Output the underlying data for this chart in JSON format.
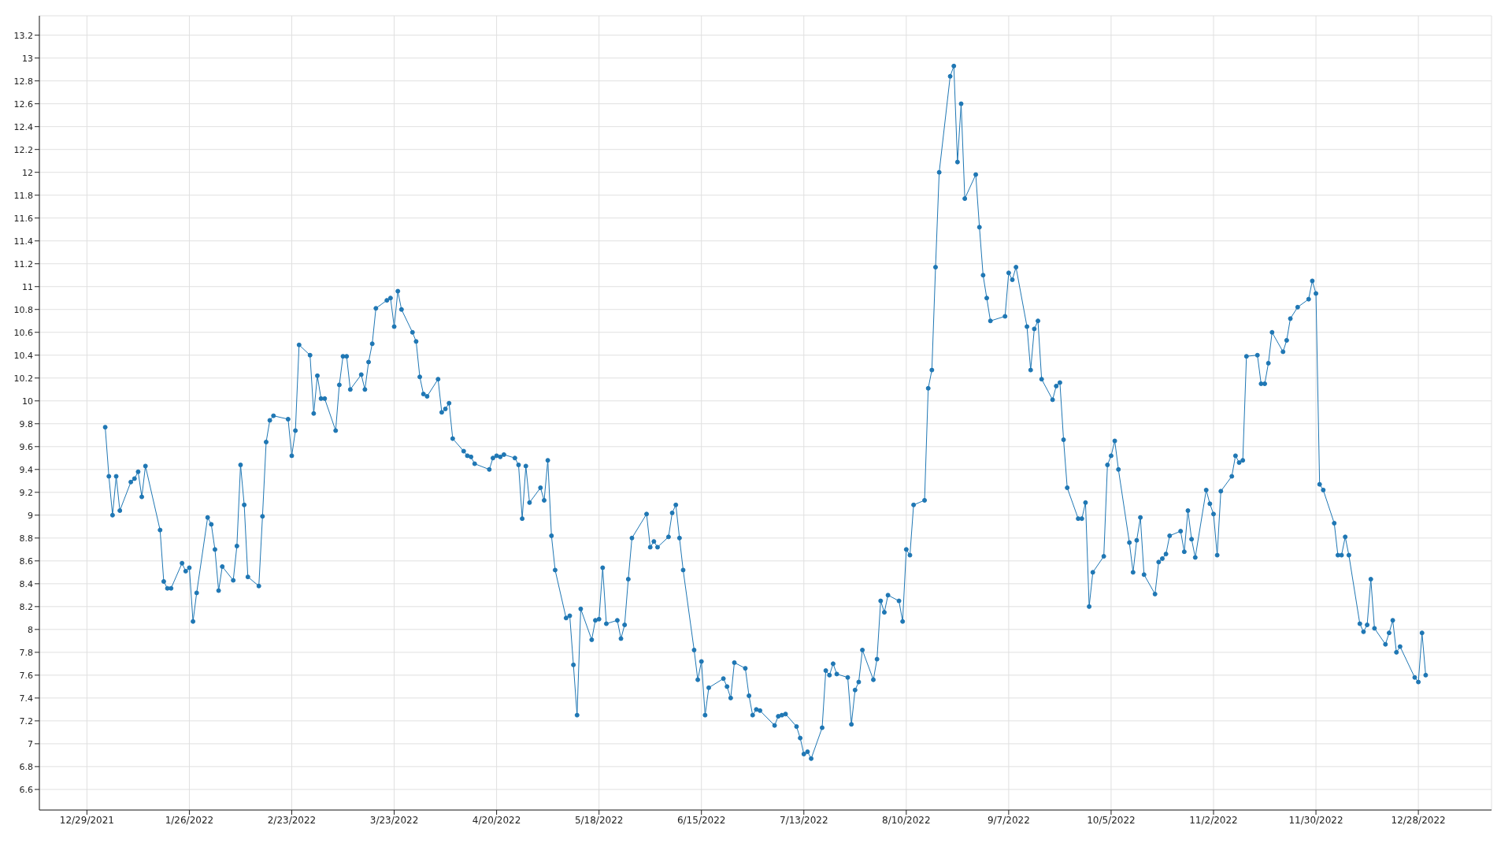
{
  "chart_data": {
    "type": "line",
    "marker": "circle",
    "line_style": "solid",
    "grid": true,
    "legend": false,
    "xlim": [
      "2021-12-16",
      "2023-01-17"
    ],
    "xticks": [
      {
        "value": "2021-12-29",
        "label": "12/29/2021"
      },
      {
        "value": "2022-01-26",
        "label": "1/26/2022"
      },
      {
        "value": "2022-02-23",
        "label": "2/23/2022"
      },
      {
        "value": "2022-03-23",
        "label": "3/23/2022"
      },
      {
        "value": "2022-04-20",
        "label": "4/20/2022"
      },
      {
        "value": "2022-05-18",
        "label": "5/18/2022"
      },
      {
        "value": "2022-06-15",
        "label": "6/15/2022"
      },
      {
        "value": "2022-07-13",
        "label": "7/13/2022"
      },
      {
        "value": "2022-08-10",
        "label": "8/10/2022"
      },
      {
        "value": "2022-09-07",
        "label": "9/7/2022"
      },
      {
        "value": "2022-10-05",
        "label": "10/5/2022"
      },
      {
        "value": "2022-11-02",
        "label": "11/2/2022"
      },
      {
        "value": "2022-11-30",
        "label": "11/30/2022"
      },
      {
        "value": "2022-12-28",
        "label": "12/28/2022"
      }
    ],
    "ylim": [
      6.42,
      13.37
    ],
    "yticks": [
      {
        "value": 6.6,
        "label": "6.6"
      },
      {
        "value": 6.8,
        "label": "6.8"
      },
      7,
      {
        "value": 7.2,
        "label": "7.2"
      },
      {
        "value": 7.4,
        "label": "7.4"
      },
      {
        "value": 7.6,
        "label": "7.6"
      },
      {
        "value": 7.8,
        "label": "7.8"
      },
      8,
      {
        "value": 8.2,
        "label": "8.2"
      },
      {
        "value": 8.4,
        "label": "8.4"
      },
      {
        "value": 8.6,
        "label": "8.6"
      },
      {
        "value": 8.8,
        "label": "8.8"
      },
      9,
      {
        "value": 9.2,
        "label": "9.2"
      },
      {
        "value": 9.4,
        "label": "9.4"
      },
      {
        "value": 9.6,
        "label": "9.6"
      },
      {
        "value": 9.8,
        "label": "9.8"
      },
      10,
      {
        "value": 10.2,
        "label": "10.2"
      },
      {
        "value": 10.4,
        "label": "10.4"
      },
      {
        "value": 10.6,
        "label": "10.6"
      },
      {
        "value": 10.8,
        "label": "10.8"
      },
      11,
      {
        "value": 11.2,
        "label": "11.2"
      },
      {
        "value": 11.4,
        "label": "11.4"
      },
      {
        "value": 11.6,
        "label": "11.6"
      },
      {
        "value": 11.8,
        "label": "11.8"
      },
      12,
      {
        "value": 12.2,
        "label": "12.2"
      },
      {
        "value": 12.4,
        "label": "12.4"
      },
      {
        "value": 12.6,
        "label": "12.6"
      },
      {
        "value": 12.8,
        "label": "12.8"
      },
      13,
      {
        "value": 13.2,
        "label": "13.2"
      }
    ],
    "x": [
      "2022-01-03",
      "2022-01-04",
      "2022-01-05",
      "2022-01-06",
      "2022-01-07",
      "2022-01-10",
      "2022-01-11",
      "2022-01-12",
      "2022-01-13",
      "2022-01-14",
      "2022-01-18",
      "2022-01-19",
      "2022-01-20",
      "2022-01-21",
      "2022-01-24",
      "2022-01-25",
      "2022-01-26",
      "2022-01-27",
      "2022-01-28",
      "2022-01-31",
      "2022-02-01",
      "2022-02-02",
      "2022-02-03",
      "2022-02-04",
      "2022-02-07",
      "2022-02-08",
      "2022-02-09",
      "2022-02-10",
      "2022-02-11",
      "2022-02-14",
      "2022-02-15",
      "2022-02-16",
      "2022-02-17",
      "2022-02-18",
      "2022-02-22",
      "2022-02-23",
      "2022-02-24",
      "2022-02-25",
      "2022-02-28",
      "2022-03-01",
      "2022-03-02",
      "2022-03-03",
      "2022-03-04",
      "2022-03-07",
      "2022-03-08",
      "2022-03-09",
      "2022-03-10",
      "2022-03-11",
      "2022-03-14",
      "2022-03-15",
      "2022-03-16",
      "2022-03-17",
      "2022-03-18",
      "2022-03-21",
      "2022-03-22",
      "2022-03-23",
      "2022-03-24",
      "2022-03-25",
      "2022-03-28",
      "2022-03-29",
      "2022-03-30",
      "2022-03-31",
      "2022-04-01",
      "2022-04-04",
      "2022-04-05",
      "2022-04-06",
      "2022-04-07",
      "2022-04-08",
      "2022-04-11",
      "2022-04-12",
      "2022-04-13",
      "2022-04-14",
      "2022-04-18",
      "2022-04-19",
      "2022-04-20",
      "2022-04-21",
      "2022-04-22",
      "2022-04-25",
      "2022-04-26",
      "2022-04-27",
      "2022-04-28",
      "2022-04-29",
      "2022-05-02",
      "2022-05-03",
      "2022-05-04",
      "2022-05-05",
      "2022-05-06",
      "2022-05-09",
      "2022-05-10",
      "2022-05-11",
      "2022-05-12",
      "2022-05-13",
      "2022-05-16",
      "2022-05-17",
      "2022-05-18",
      "2022-05-19",
      "2022-05-20",
      "2022-05-23",
      "2022-05-24",
      "2022-05-25",
      "2022-05-26",
      "2022-05-27",
      "2022-05-31",
      "2022-06-01",
      "2022-06-02",
      "2022-06-03",
      "2022-06-06",
      "2022-06-07",
      "2022-06-08",
      "2022-06-09",
      "2022-06-10",
      "2022-06-13",
      "2022-06-14",
      "2022-06-15",
      "2022-06-16",
      "2022-06-17",
      "2022-06-21",
      "2022-06-22",
      "2022-06-23",
      "2022-06-24",
      "2022-06-27",
      "2022-06-28",
      "2022-06-29",
      "2022-06-30",
      "2022-07-01",
      "2022-07-05",
      "2022-07-06",
      "2022-07-07",
      "2022-07-08",
      "2022-07-11",
      "2022-07-12",
      "2022-07-13",
      "2022-07-14",
      "2022-07-15",
      "2022-07-18",
      "2022-07-19",
      "2022-07-20",
      "2022-07-21",
      "2022-07-22",
      "2022-07-25",
      "2022-07-26",
      "2022-07-27",
      "2022-07-28",
      "2022-07-29",
      "2022-08-01",
      "2022-08-02",
      "2022-08-03",
      "2022-08-04",
      "2022-08-05",
      "2022-08-08",
      "2022-08-09",
      "2022-08-10",
      "2022-08-11",
      "2022-08-12",
      "2022-08-15",
      "2022-08-16",
      "2022-08-17",
      "2022-08-18",
      "2022-08-19",
      "2022-08-22",
      "2022-08-23",
      "2022-08-24",
      "2022-08-25",
      "2022-08-26",
      "2022-08-29",
      "2022-08-30",
      "2022-08-31",
      "2022-09-01",
      "2022-09-02",
      "2022-09-06",
      "2022-09-07",
      "2022-09-08",
      "2022-09-09",
      "2022-09-12",
      "2022-09-13",
      "2022-09-14",
      "2022-09-15",
      "2022-09-16",
      "2022-09-19",
      "2022-09-20",
      "2022-09-21",
      "2022-09-22",
      "2022-09-23",
      "2022-09-26",
      "2022-09-27",
      "2022-09-28",
      "2022-09-29",
      "2022-09-30",
      "2022-10-03",
      "2022-10-04",
      "2022-10-05",
      "2022-10-06",
      "2022-10-07",
      "2022-10-10",
      "2022-10-11",
      "2022-10-12",
      "2022-10-13",
      "2022-10-14",
      "2022-10-17",
      "2022-10-18",
      "2022-10-19",
      "2022-10-20",
      "2022-10-21",
      "2022-10-24",
      "2022-10-25",
      "2022-10-26",
      "2022-10-27",
      "2022-10-28",
      "2022-10-31",
      "2022-11-01",
      "2022-11-02",
      "2022-11-03",
      "2022-11-04",
      "2022-11-07",
      "2022-11-08",
      "2022-11-09",
      "2022-11-10",
      "2022-11-11",
      "2022-11-14",
      "2022-11-15",
      "2022-11-16",
      "2022-11-17",
      "2022-11-18",
      "2022-11-21",
      "2022-11-22",
      "2022-11-23",
      "2022-11-25",
      "2022-11-28",
      "2022-11-29",
      "2022-11-30",
      "2022-12-01",
      "2022-12-02",
      "2022-12-05",
      "2022-12-06",
      "2022-12-07",
      "2022-12-08",
      "2022-12-09",
      "2022-12-12",
      "2022-12-13",
      "2022-12-14",
      "2022-12-15",
      "2022-12-16",
      "2022-12-19",
      "2022-12-20",
      "2022-12-21",
      "2022-12-22",
      "2022-12-23",
      "2022-12-27",
      "2022-12-28",
      "2022-12-29",
      "2022-12-30"
    ],
    "series": [
      {
        "color": "#1f77b4",
        "values": [
          9.77,
          9.34,
          9.0,
          9.34,
          9.04,
          9.29,
          9.32,
          9.38,
          9.16,
          9.43,
          8.87,
          8.42,
          8.36,
          8.36,
          8.58,
          8.51,
          8.54,
          8.07,
          8.32,
          8.98,
          8.92,
          8.7,
          8.34,
          8.55,
          8.43,
          8.73,
          9.44,
          9.09,
          8.46,
          8.38,
          8.99,
          9.64,
          9.83,
          9.87,
          9.84,
          9.52,
          9.74,
          10.49,
          10.4,
          9.89,
          10.22,
          10.02,
          10.02,
          9.74,
          10.14,
          10.39,
          10.39,
          10.1,
          10.23,
          10.1,
          10.34,
          10.5,
          10.81,
          10.88,
          10.9,
          10.65,
          10.96,
          10.8,
          10.6,
          10.52,
          10.21,
          10.06,
          10.04,
          10.19,
          9.9,
          9.93,
          9.98,
          9.67,
          9.56,
          9.52,
          9.51,
          9.45,
          9.4,
          9.5,
          9.52,
          9.51,
          9.53,
          9.5,
          9.44,
          8.97,
          9.43,
          9.11,
          9.24,
          9.13,
          9.48,
          8.82,
          8.52,
          8.1,
          8.12,
          7.69,
          7.25,
          8.18,
          7.91,
          8.08,
          8.09,
          8.54,
          8.05,
          8.08,
          7.92,
          8.04,
          8.44,
          8.8,
          9.01,
          8.72,
          8.77,
          8.72,
          8.81,
          9.02,
          9.09,
          8.8,
          8.52,
          7.82,
          7.56,
          7.72,
          7.25,
          7.49,
          7.57,
          7.5,
          7.4,
          7.71,
          7.66,
          7.42,
          7.25,
          7.3,
          7.29,
          7.16,
          7.24,
          7.25,
          7.26,
          7.15,
          7.05,
          6.91,
          6.93,
          6.87,
          7.14,
          7.64,
          7.6,
          7.7,
          7.61,
          7.58,
          7.17,
          7.47,
          7.54,
          7.82,
          7.56,
          7.74,
          8.25,
          8.15,
          8.3,
          8.25,
          8.07,
          8.7,
          8.65,
          9.09,
          9.13,
          10.11,
          10.27,
          11.17,
          12.0,
          12.84,
          12.93,
          12.09,
          12.6,
          11.77,
          11.98,
          11.52,
          11.1,
          10.9,
          10.7,
          10.74,
          11.12,
          11.06,
          11.17,
          10.65,
          10.27,
          10.63,
          10.7,
          10.19,
          10.01,
          10.13,
          10.16,
          9.66,
          9.24,
          8.97,
          8.97,
          9.11,
          8.2,
          8.5,
          8.64,
          9.44,
          9.52,
          9.65,
          9.4,
          8.76,
          8.5,
          8.78,
          8.98,
          8.48,
          8.31,
          8.59,
          8.62,
          8.66,
          8.82,
          8.86,
          8.68,
          9.04,
          8.79,
          8.63,
          9.22,
          9.1,
          9.01,
          8.65,
          9.21,
          9.34,
          9.52,
          9.46,
          9.48,
          10.39,
          10.4,
          10.15,
          10.15,
          10.33,
          10.6,
          10.43,
          10.53,
          10.72,
          10.82,
          10.89,
          11.05,
          10.94,
          9.27,
          9.22,
          8.93,
          8.65,
          8.65,
          8.81,
          8.65,
          8.05,
          7.98,
          8.04,
          8.44,
          8.01,
          7.87,
          7.97,
          8.08,
          7.8,
          7.85,
          7.58,
          7.54,
          7.97,
          7.6
        ]
      }
    ]
  }
}
